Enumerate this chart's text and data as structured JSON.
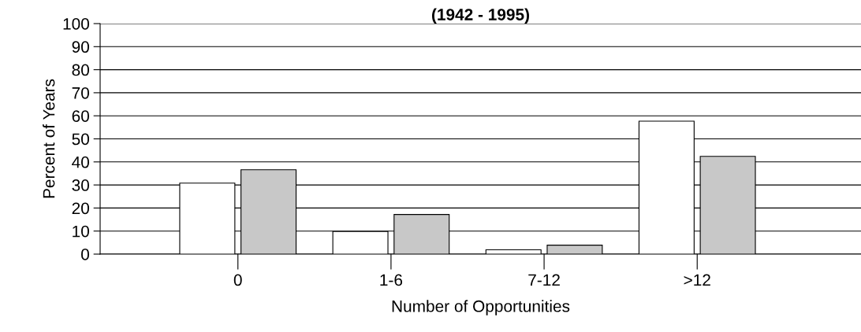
{
  "chart_data": {
    "type": "bar",
    "title": "(1942 - 1995)",
    "xlabel": "Number of Opportunities",
    "ylabel": "Percent of Years",
    "categories": [
      "0",
      "1-6",
      "7-12",
      ">12"
    ],
    "series": [
      {
        "color": "#ffffff",
        "values": [
          30.8,
          9.8,
          1.9,
          57.7
        ]
      },
      {
        "color": "#c8c8c8",
        "values": [
          36.6,
          17.2,
          3.9,
          42.4
        ]
      }
    ],
    "ylim": [
      0,
      100
    ],
    "yticks": [
      0,
      10,
      20,
      30,
      40,
      50,
      60,
      70,
      80,
      90,
      100
    ],
    "grid": "y",
    "legend": false
  }
}
